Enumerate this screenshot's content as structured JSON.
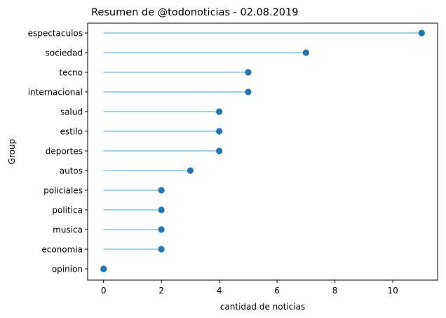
{
  "chart_data": {
    "type": "lollipop",
    "orientation": "horizontal",
    "title": "Resumen de @todonoticias - 02.08.2019",
    "xlabel": "cantidad de noticias",
    "ylabel": "Group",
    "xlim": [
      -0.55,
      11.55
    ],
    "x_ticks": [
      0,
      2,
      4,
      6,
      8,
      10
    ],
    "grid": false,
    "categories": [
      "opinion",
      "economia",
      "musica",
      "politica",
      "policiales",
      "autos",
      "deportes",
      "estilo",
      "salud",
      "internacional",
      "tecno",
      "sociedad",
      "espectaculos"
    ],
    "values": [
      0,
      2,
      2,
      2,
      2,
      3,
      4,
      4,
      4,
      5,
      5,
      7,
      11
    ],
    "colors": {
      "stem": "#7ec8e3",
      "marker": "#1f77b4",
      "axes": "#000000"
    }
  }
}
